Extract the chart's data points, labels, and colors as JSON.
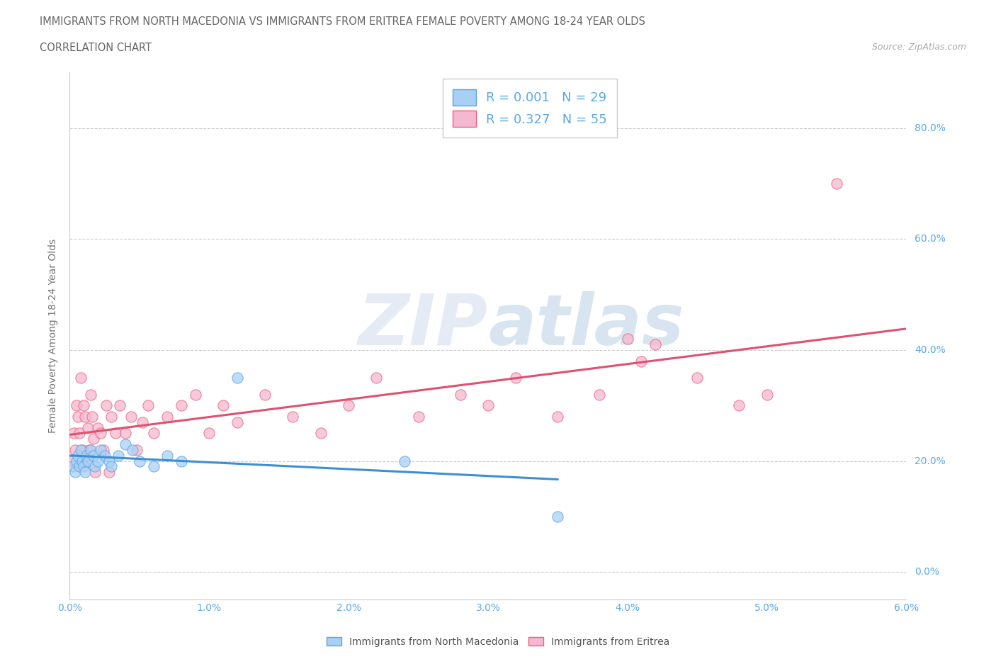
{
  "title_line1": "IMMIGRANTS FROM NORTH MACEDONIA VS IMMIGRANTS FROM ERITREA FEMALE POVERTY AMONG 18-24 YEAR OLDS",
  "title_line2": "CORRELATION CHART",
  "source_text": "Source: ZipAtlas.com",
  "ylabel": "Female Poverty Among 18-24 Year Olds",
  "xlim": [
    0.0,
    6.0
  ],
  "ylim": [
    -5.0,
    90.0
  ],
  "ytick_labels": [
    "0.0%",
    "20.0%",
    "40.0%",
    "60.0%",
    "80.0%"
  ],
  "ytick_values": [
    0,
    20,
    40,
    60,
    80
  ],
  "xtick_labels": [
    "0.0%",
    "1.0%",
    "2.0%",
    "3.0%",
    "4.0%",
    "5.0%",
    "6.0%"
  ],
  "xtick_values": [
    0,
    1,
    2,
    3,
    4,
    5,
    6
  ],
  "legend_label1": "Immigrants from North Macedonia",
  "legend_label2": "Immigrants from Eritrea",
  "R1": "0.001",
  "N1": "29",
  "R2": "0.327",
  "N2": "55",
  "color_blue": "#A8D0F5",
  "color_pink": "#F5B8D0",
  "color_blue_dark": "#5BA3E0",
  "color_pink_dark": "#E8607A",
  "color_blue_line": "#3D8FD4",
  "color_pink_line": "#E05070",
  "color_title": "#666666",
  "color_axis_label": "#777777",
  "color_tick": "#5BA8E8",
  "watermark_color": "#E5EBF5",
  "scatter_blue_x": [
    0.02,
    0.04,
    0.05,
    0.06,
    0.07,
    0.08,
    0.09,
    0.1,
    0.11,
    0.12,
    0.13,
    0.15,
    0.17,
    0.18,
    0.2,
    0.22,
    0.25,
    0.28,
    0.3,
    0.35,
    0.4,
    0.45,
    0.5,
    0.6,
    0.7,
    0.8,
    1.2,
    2.4,
    3.5
  ],
  "scatter_blue_y": [
    19,
    18,
    20,
    21,
    19,
    22,
    20,
    19,
    18,
    21,
    20,
    22,
    21,
    19,
    20,
    22,
    21,
    20,
    19,
    21,
    23,
    22,
    20,
    19,
    21,
    20,
    35,
    20,
    10
  ],
  "scatter_pink_x": [
    0.02,
    0.03,
    0.04,
    0.05,
    0.06,
    0.07,
    0.08,
    0.09,
    0.1,
    0.11,
    0.12,
    0.13,
    0.14,
    0.15,
    0.16,
    0.17,
    0.18,
    0.2,
    0.22,
    0.24,
    0.26,
    0.28,
    0.3,
    0.33,
    0.36,
    0.4,
    0.44,
    0.48,
    0.52,
    0.56,
    0.6,
    0.7,
    0.8,
    0.9,
    1.0,
    1.1,
    1.2,
    1.4,
    1.6,
    1.8,
    2.0,
    2.2,
    2.5,
    2.8,
    3.0,
    3.2,
    3.5,
    3.8,
    4.0,
    4.1,
    4.2,
    4.5,
    4.8,
    5.0,
    5.5
  ],
  "scatter_pink_y": [
    20,
    25,
    22,
    30,
    28,
    25,
    35,
    22,
    30,
    28,
    20,
    26,
    22,
    32,
    28,
    24,
    18,
    26,
    25,
    22,
    30,
    18,
    28,
    25,
    30,
    25,
    28,
    22,
    27,
    30,
    25,
    28,
    30,
    32,
    25,
    30,
    27,
    32,
    28,
    25,
    30,
    35,
    28,
    32,
    30,
    35,
    28,
    32,
    42,
    38,
    41,
    35,
    30,
    32,
    70
  ]
}
